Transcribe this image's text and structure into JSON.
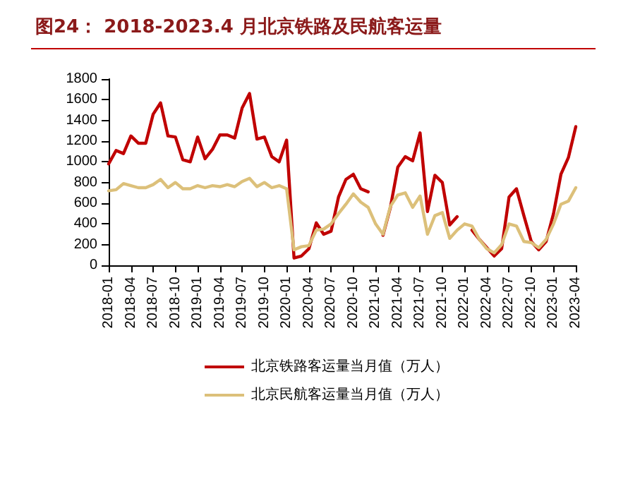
{
  "chart_data": {
    "type": "line",
    "title": "图24： 2018-2023.4 月北京铁路及民航客运量",
    "categories": [
      "2018-01",
      null,
      null,
      "2018-04",
      null,
      null,
      "2018-07",
      null,
      null,
      "2018-10",
      null,
      null,
      "2019-01",
      null,
      null,
      "2019-04",
      null,
      null,
      "2019-07",
      null,
      null,
      "2019-10",
      null,
      null,
      "2020-01",
      null,
      null,
      "2020-04",
      null,
      null,
      "2020-07",
      null,
      null,
      "2020-10",
      null,
      null,
      "2021-01",
      null,
      null,
      "2021-04",
      null,
      null,
      "2021-07",
      null,
      null,
      "2021-10",
      null,
      null,
      "2022-01",
      null,
      null,
      "2022-04",
      null,
      null,
      "2022-07",
      null,
      null,
      "2022-10",
      null,
      null,
      "2023-01",
      null,
      null,
      "2023-04"
    ],
    "series": [
      {
        "name": "北京铁路客运量当月值（万人）",
        "color": "#c00000",
        "values": [
          980,
          1110,
          1080,
          1250,
          1180,
          1180,
          1460,
          1570,
          1250,
          1240,
          1020,
          1000,
          1240,
          1030,
          1120,
          1260,
          1260,
          1230,
          1520,
          1660,
          1220,
          1240,
          1050,
          1000,
          1210,
          70,
          90,
          160,
          410,
          300,
          330,
          660,
          830,
          880,
          740,
          710,
          null,
          290,
          560,
          950,
          1050,
          1010,
          1280,
          520,
          870,
          800,
          390,
          470,
          null,
          340,
          250,
          170,
          90,
          160,
          660,
          740,
          480,
          230,
          150,
          230,
          500,
          880,
          1040,
          1340
        ]
      },
      {
        "name": "北京民航客运量当月值（万人）",
        "color": "#dcc07a",
        "values": [
          720,
          730,
          790,
          770,
          750,
          750,
          780,
          830,
          750,
          800,
          740,
          740,
          770,
          750,
          770,
          760,
          780,
          760,
          810,
          840,
          760,
          800,
          750,
          770,
          740,
          150,
          180,
          190,
          340,
          350,
          400,
          500,
          590,
          690,
          610,
          560,
          400,
          300,
          570,
          680,
          700,
          560,
          670,
          300,
          480,
          510,
          260,
          340,
          400,
          380,
          250,
          160,
          120,
          200,
          400,
          380,
          230,
          220,
          170,
          250,
          400,
          590,
          620,
          750
        ]
      }
    ],
    "ylim": [
      0,
      1800
    ],
    "yticks": [
      0,
      200,
      400,
      600,
      800,
      1000,
      1200,
      1400,
      1600,
      1800
    ],
    "grid": false,
    "legend": "bottom",
    "marker": "none",
    "line_style": "solid"
  }
}
